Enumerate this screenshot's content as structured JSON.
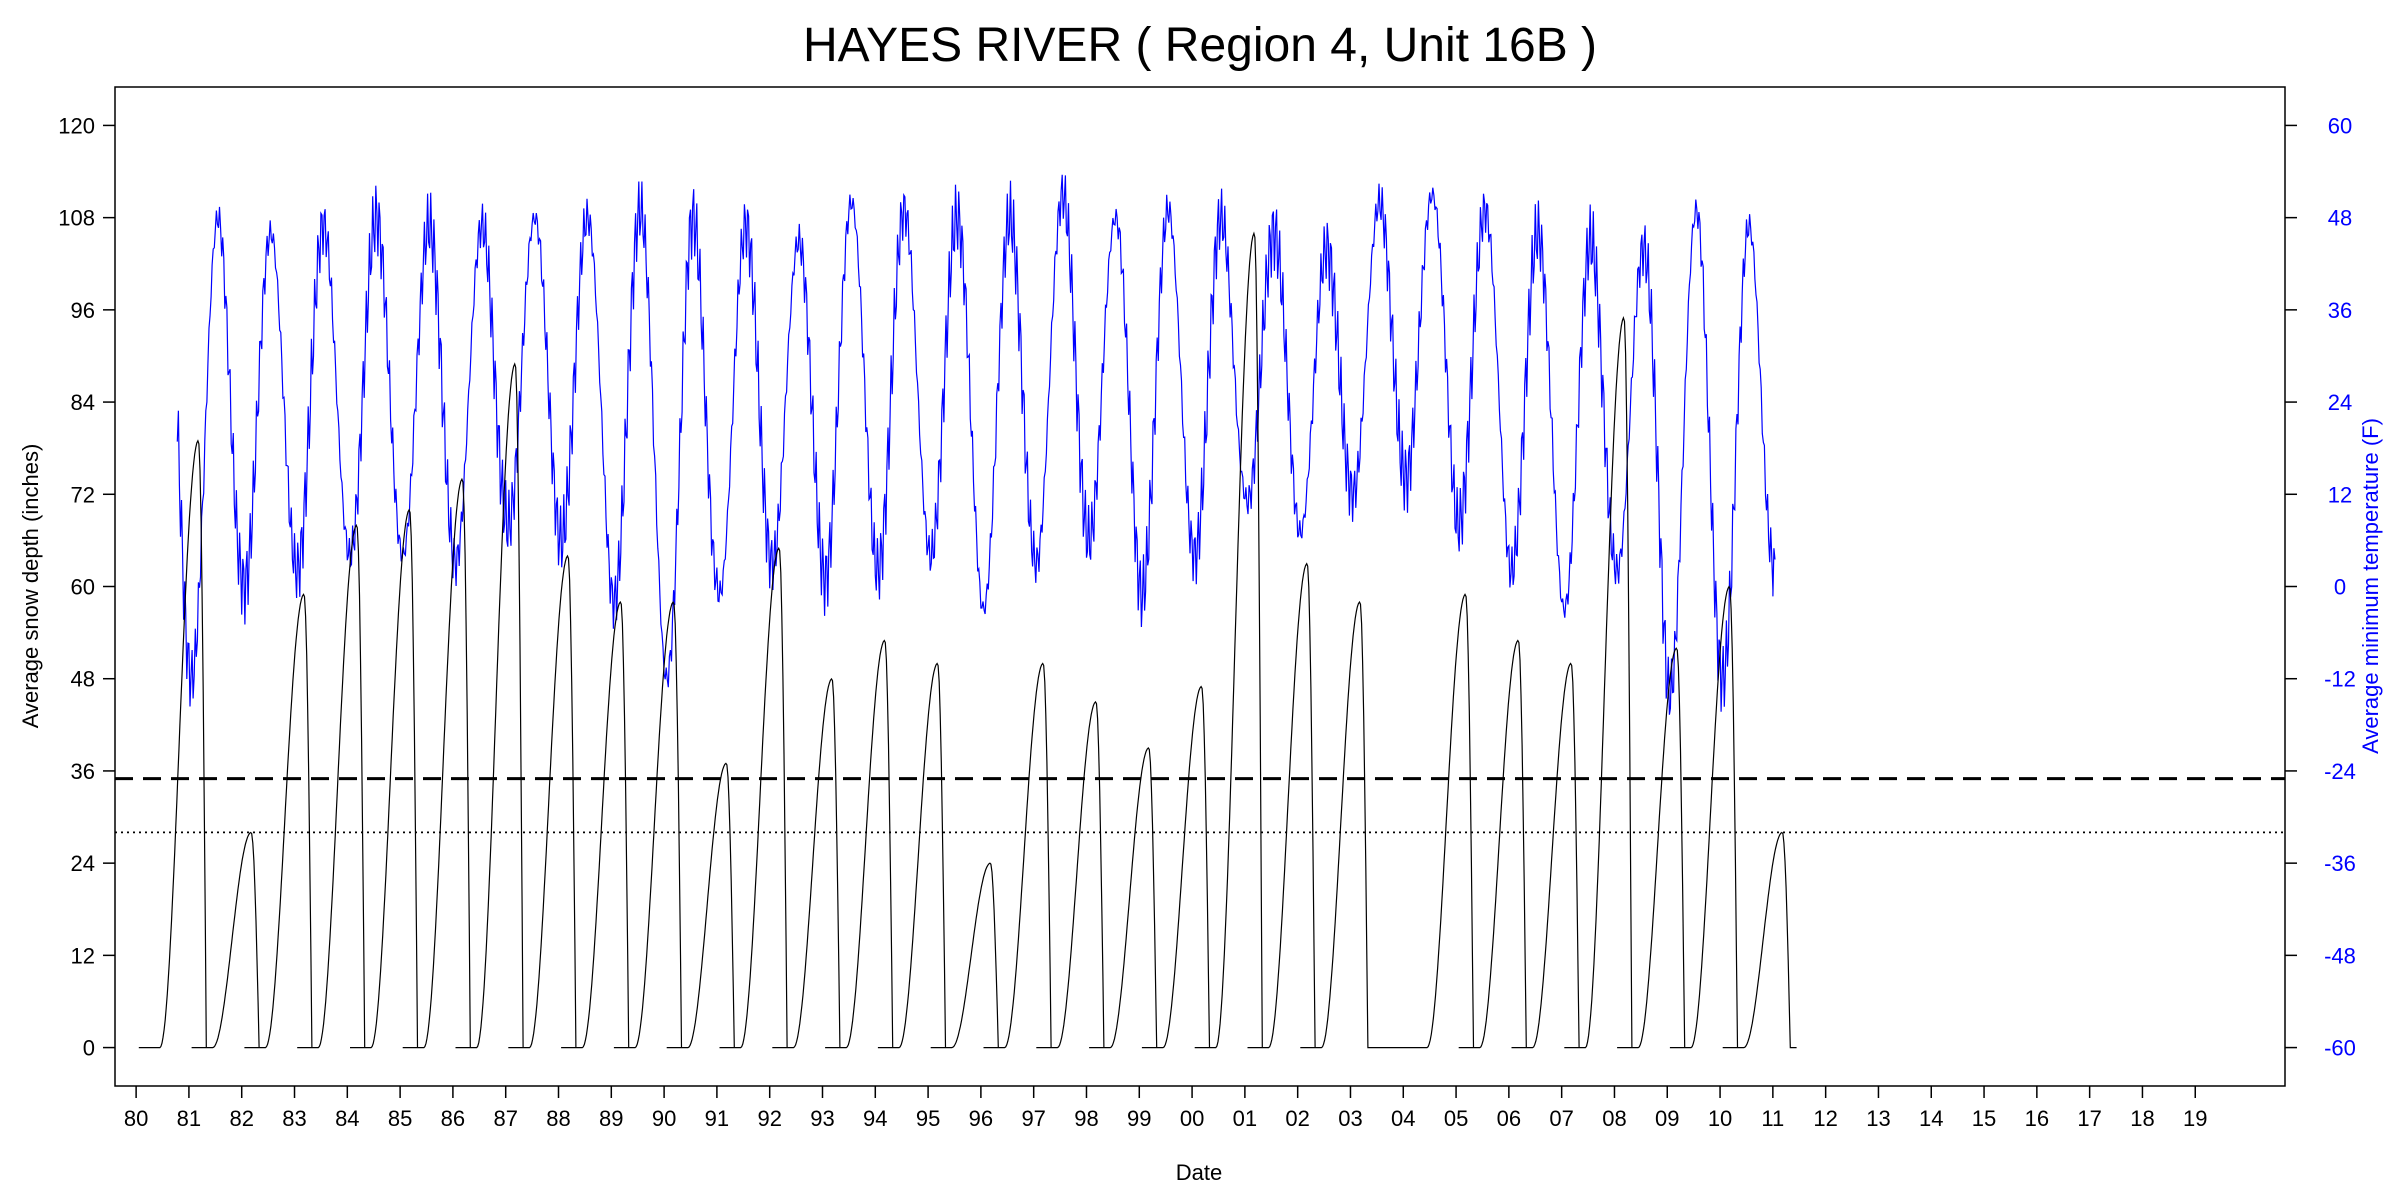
{
  "chart_data": {
    "type": "line",
    "title": "HAYES RIVER ( Region 4, Unit 16B )",
    "xlabel": "Date",
    "ylabel": "Average snow depth (inches)",
    "y2label": "Average minimum temperature (F)",
    "x_ticks": [
      "80",
      "81",
      "82",
      "83",
      "84",
      "85",
      "86",
      "87",
      "88",
      "89",
      "90",
      "91",
      "92",
      "93",
      "94",
      "95",
      "96",
      "97",
      "98",
      "99",
      "00",
      "01",
      "02",
      "03",
      "04",
      "05",
      "06",
      "07",
      "08",
      "09",
      "10",
      "11",
      "12",
      "13",
      "14",
      "15",
      "16",
      "17",
      "18",
      "19"
    ],
    "x_range": [
      1979.6,
      2020.7
    ],
    "ylim": [
      -5,
      125
    ],
    "y_ticks": [
      0,
      12,
      24,
      36,
      48,
      60,
      72,
      84,
      96,
      108,
      120
    ],
    "y2lim": [
      -65,
      65
    ],
    "y2_ticks": [
      -60,
      -48,
      -36,
      -24,
      -12,
      0,
      12,
      24,
      36,
      48,
      60
    ],
    "reference_lines": [
      {
        "y": 35,
        "style": "dashed"
      },
      {
        "y": 28,
        "style": "dotted"
      }
    ],
    "snow_peaks": [
      {
        "season": 1981,
        "peak": 79
      },
      {
        "season": 1982,
        "peak": 28
      },
      {
        "season": 1983,
        "peak": 59
      },
      {
        "season": 1984,
        "peak": 68
      },
      {
        "season": 1985,
        "peak": 70
      },
      {
        "season": 1986,
        "peak": 74
      },
      {
        "season": 1987,
        "peak": 89
      },
      {
        "season": 1988,
        "peak": 64
      },
      {
        "season": 1989,
        "peak": 58
      },
      {
        "season": 1990,
        "peak": 58
      },
      {
        "season": 1991,
        "peak": 37
      },
      {
        "season": 1992,
        "peak": 65
      },
      {
        "season": 1993,
        "peak": 48
      },
      {
        "season": 1994,
        "peak": 53
      },
      {
        "season": 1995,
        "peak": 50
      },
      {
        "season": 1996,
        "peak": 24
      },
      {
        "season": 1997,
        "peak": 50
      },
      {
        "season": 1998,
        "peak": 45
      },
      {
        "season": 1999,
        "peak": 39
      },
      {
        "season": 2000,
        "peak": 47
      },
      {
        "season": 2001,
        "peak": 106
      },
      {
        "season": 2002,
        "peak": 63
      },
      {
        "season": 2003,
        "peak": 58
      },
      {
        "season": 2005,
        "peak": 59
      },
      {
        "season": 2006,
        "peak": 53
      },
      {
        "season": 2007,
        "peak": 50
      },
      {
        "season": 2008,
        "peak": 95
      },
      {
        "season": 2009,
        "peak": 52
      },
      {
        "season": 2010,
        "peak": 60
      },
      {
        "season": 2011,
        "peak": 28
      }
    ],
    "temp_extremes": [
      {
        "year": 1981,
        "max": 48,
        "min": -12
      },
      {
        "year": 1982,
        "max": 46,
        "min": 0
      },
      {
        "year": 1983,
        "max": 47,
        "min": 2
      },
      {
        "year": 1984,
        "max": 48,
        "min": 4
      },
      {
        "year": 1985,
        "max": 47,
        "min": 4
      },
      {
        "year": 1986,
        "max": 47,
        "min": 3
      },
      {
        "year": 1987,
        "max": 48,
        "min": 8
      },
      {
        "year": 1988,
        "max": 48,
        "min": 6
      },
      {
        "year": 1989,
        "max": 49,
        "min": -2
      },
      {
        "year": 1990,
        "max": 48,
        "min": -12
      },
      {
        "year": 1991,
        "max": 47,
        "min": -1
      },
      {
        "year": 1992,
        "max": 45,
        "min": 3
      },
      {
        "year": 1993,
        "max": 50,
        "min": 1
      },
      {
        "year": 1994,
        "max": 49,
        "min": 2
      },
      {
        "year": 1995,
        "max": 48,
        "min": 4
      },
      {
        "year": 1996,
        "max": 48,
        "min": -3
      },
      {
        "year": 1997,
        "max": 51,
        "min": 3
      },
      {
        "year": 1998,
        "max": 48,
        "min": 6
      },
      {
        "year": 1999,
        "max": 49,
        "min": -1
      },
      {
        "year": 2000,
        "max": 48,
        "min": 4
      },
      {
        "year": 2001,
        "max": 46,
        "min": 11
      },
      {
        "year": 2002,
        "max": 44,
        "min": 7
      },
      {
        "year": 2003,
        "max": 50,
        "min": 12
      },
      {
        "year": 2004,
        "max": 51,
        "min": 14
      },
      {
        "year": 2005,
        "max": 49,
        "min": 8
      },
      {
        "year": 2006,
        "max": 46,
        "min": 2
      },
      {
        "year": 2007,
        "max": 45,
        "min": -3
      },
      {
        "year": 2008,
        "max": 44,
        "min": 2
      },
      {
        "year": 2009,
        "max": 49,
        "min": -14
      },
      {
        "year": 2010,
        "max": 47,
        "min": -12
      },
      {
        "year": 2011,
        "max": 15,
        "min": 2
      }
    ],
    "series": [
      {
        "axis": "left",
        "color": "#000000"
      },
      {
        "axis": "right",
        "color": "#0000ff"
      }
    ],
    "grid": false,
    "legend": "none"
  }
}
